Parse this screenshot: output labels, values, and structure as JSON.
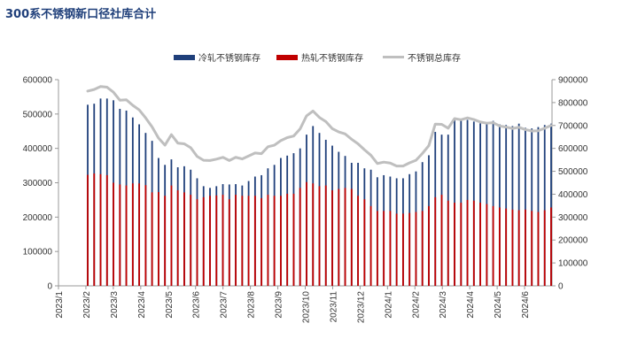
{
  "title": "300系不锈钢新口径社库合计",
  "colors": {
    "cold": "#1f3f7a",
    "hot": "#c00000",
    "total": "#bfbfbf",
    "axis": "#999999"
  },
  "chart_data": {
    "type": "bar",
    "title": "300系不锈钢新口径社库合计",
    "legend_position": "top",
    "grid": false,
    "x_tick_labels": [
      "2023/1",
      "2023/2",
      "2023/3",
      "2023/4",
      "2023/5",
      "2023/6",
      "2023/7",
      "2023/8",
      "2023/9",
      "2023/10",
      "2023/11",
      "2023/12",
      "2024/1",
      "2024/2",
      "2024/3",
      "2024/4",
      "2024/5",
      "2024/6"
    ],
    "y_left": {
      "min": 0,
      "max": 600000,
      "ticks": [
        0,
        100000,
        200000,
        300000,
        400000,
        500000,
        600000
      ]
    },
    "y_right": {
      "min": 0,
      "max": 900000,
      "ticks": [
        0,
        100000,
        200000,
        300000,
        400000,
        500000,
        600000,
        700000,
        800000,
        900000
      ]
    },
    "series": [
      {
        "name": "冷轧不锈钢库存",
        "kind": "bar",
        "axis": "left",
        "values": [
          527000,
          530000,
          545000,
          545000,
          540000,
          515000,
          510000,
          490000,
          470000,
          445000,
          422000,
          372000,
          352000,
          368000,
          345000,
          348000,
          338000,
          313000,
          290000,
          285000,
          290000,
          296000,
          295000,
          296000,
          292000,
          305000,
          318000,
          322000,
          342000,
          352000,
          372000,
          379000,
          386000,
          400000,
          440000,
          465000,
          445000,
          425000,
          408000,
          390000,
          378000,
          358000,
          358000,
          342000,
          338000,
          316000,
          322000,
          318000,
          313000,
          313000,
          325000,
          333000,
          360000,
          380000,
          448000,
          440000,
          440000,
          488000,
          483000,
          483000,
          478000,
          473000,
          472000,
          480000,
          470000,
          468000,
          465000,
          472000,
          460000,
          458000,
          462000,
          468000,
          472000
        ]
      },
      {
        "name": "热轧不锈钢库存",
        "kind": "bar",
        "axis": "left",
        "values": [
          323000,
          327000,
          325000,
          322000,
          300000,
          295000,
          292000,
          298000,
          298000,
          293000,
          272000,
          273000,
          262000,
          292000,
          278000,
          272000,
          265000,
          252000,
          258000,
          262000,
          263000,
          265000,
          252000,
          265000,
          262000,
          262000,
          262000,
          255000,
          265000,
          262000,
          262000,
          268000,
          268000,
          285000,
          302000,
          298000,
          290000,
          292000,
          278000,
          282000,
          285000,
          282000,
          262000,
          252000,
          232000,
          218000,
          218000,
          218000,
          210000,
          210000,
          212000,
          215000,
          218000,
          232000,
          258000,
          265000,
          248000,
          242000,
          242000,
          250000,
          248000,
          242000,
          238000,
          232000,
          228000,
          225000,
          222000,
          220000,
          222000,
          218000,
          215000,
          220000,
          228000
        ]
      },
      {
        "name": "不锈钢总库存",
        "kind": "line",
        "axis": "right",
        "values": [
          850000,
          857000,
          870000,
          867000,
          845000,
          810000,
          812000,
          788000,
          768000,
          733000,
          694000,
          645000,
          614000,
          660000,
          623000,
          620000,
          603000,
          565000,
          548000,
          547000,
          553000,
          561000,
          547000,
          561000,
          554000,
          567000,
          580000,
          577000,
          607000,
          614000,
          634000,
          647000,
          654000,
          685000,
          742000,
          763000,
          735000,
          717000,
          686000,
          672000,
          663000,
          640000,
          620000,
          594000,
          570000,
          534000,
          540000,
          536000,
          523000,
          523000,
          537000,
          548000,
          578000,
          612000,
          706000,
          705000,
          688000,
          730000,
          725000,
          733000,
          726000,
          715000,
          710000,
          712000,
          698000,
          693000,
          687000,
          692000,
          682000,
          676000,
          677000,
          688000,
          700000
        ]
      }
    ]
  }
}
